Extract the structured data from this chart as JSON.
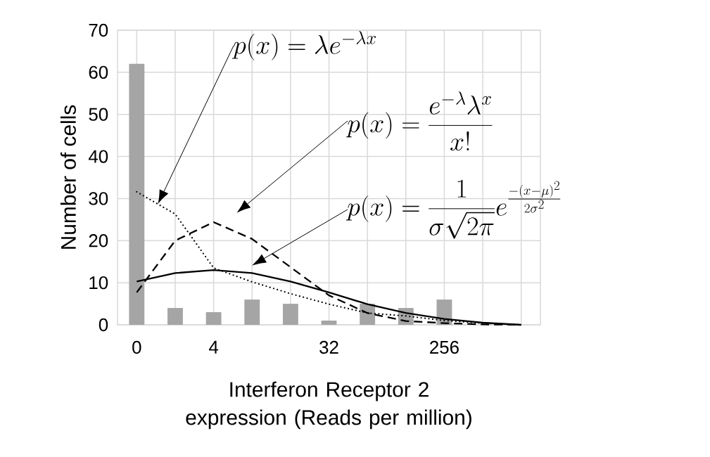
{
  "chart_data": {
    "type": "bar",
    "xlabel": "Interferon Receptor 2 expression (Reads per million)",
    "ylabel": "Number of cells",
    "categories": [
      "0",
      null,
      "4",
      null,
      null,
      "32",
      null,
      null,
      "256",
      null,
      null
    ],
    "series": [
      {
        "color": "#a5a5a5",
        "values": [
          62,
          4,
          3,
          6,
          5,
          1,
          5,
          4,
          6,
          0,
          0
        ]
      },
      {
        "type": "line",
        "color": "#000000",
        "line_style": "dotted",
        "values": [
          31.6,
          26.3,
          13.5,
          10.2,
          7.4,
          4.9,
          2.8,
          2.1,
          1,
          0.4,
          0
        ]
      },
      {
        "type": "line",
        "color": "#000000",
        "line_style": "dashed",
        "values": [
          7.7,
          20,
          24.4,
          20.4,
          13.7,
          7,
          2.8,
          0.9,
          0.4,
          0.1,
          0
        ]
      },
      {
        "type": "line",
        "color": "#000000",
        "line_style": "solid",
        "values": [
          10.3,
          12.3,
          13,
          12.3,
          10.3,
          7.7,
          4.9,
          2.8,
          1.4,
          0.5,
          0
        ]
      }
    ],
    "annotations": [
      "p(x) = \\lambda e^{-\\lambda x}",
      "p(x) = \\frac{e^{-\\lambda}\\lambda^{x}}{x!}",
      "p(x) = \\frac{1}{\\sigma\\sqrt{2\\pi}} e^{\\frac{-(x-\\mu)^2}{2\\sigma^2}}"
    ],
    "ylim": [
      0,
      70
    ],
    "yticks": [
      0,
      10,
      20,
      30,
      40,
      50,
      60,
      70
    ],
    "grid": true
  }
}
